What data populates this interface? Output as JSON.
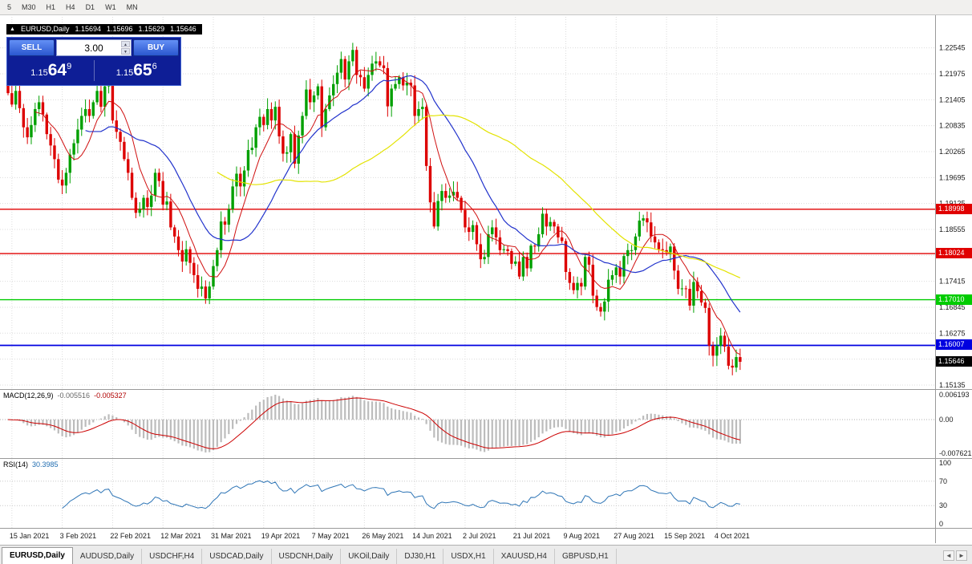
{
  "toolbar": {
    "timeframes": [
      "5",
      "M30",
      "H1",
      "H4",
      "D1",
      "W1",
      "MN"
    ]
  },
  "icons": {
    "panel_toggle": "▲",
    "volume_up": "▲",
    "volume_down": "▼",
    "tabs_left": "◄",
    "tabs_right": "►"
  },
  "ohlc_strip": {
    "symbol": "EURUSD,Daily",
    "open": "1.15694",
    "high": "1.15696",
    "low": "1.15629",
    "close": "1.15646"
  },
  "trade_panel": {
    "sell_label": "SELL",
    "buy_label": "BUY",
    "volume": "3.00",
    "sell_price": {
      "prefix": "1.15",
      "big": "64",
      "sup": "9"
    },
    "buy_price": {
      "prefix": "1.15",
      "big": "65",
      "sup": "6"
    }
  },
  "chart_data": {
    "type": "candlestick",
    "symbol": "EURUSD",
    "timeframe": "Daily",
    "title": "EURUSD,Daily",
    "ylim": [
      1.15046,
      1.2328
    ],
    "y_ticks": [
      {
        "label": "1.22545",
        "price": 1.22545
      },
      {
        "label": "1.21975",
        "price": 1.21975
      },
      {
        "label": "1.21405",
        "price": 1.21405
      },
      {
        "label": "1.20835",
        "price": 1.20835
      },
      {
        "label": "1.20265",
        "price": 1.20265
      },
      {
        "label": "1.19695",
        "price": 1.19695
      },
      {
        "label": "1.19125",
        "price": 1.19125
      },
      {
        "label": "1.18555",
        "price": 1.18555
      },
      {
        "label": "1.17415",
        "price": 1.17415
      },
      {
        "label": "1.16845",
        "price": 1.16845
      },
      {
        "label": "1.16275",
        "price": 1.16275
      },
      {
        "label": "1.15135",
        "price": 1.15135
      }
    ],
    "y_grid_extra": [
      1.17985,
      1.15705
    ],
    "x_labels": [
      "15 Jan 2021",
      "3 Feb 2021",
      "22 Feb 2021",
      "12 Mar 2021",
      "31 Mar 2021",
      "19 Apr 2021",
      "7 May 2021",
      "26 May 2021",
      "14 Jun 2021",
      "2 Jul 2021",
      "21 Jul 2021",
      "9 Aug 2021",
      "27 Aug 2021",
      "15 Sep 2021",
      "4 Oct 2021"
    ],
    "x_label_bars": [
      1,
      14,
      27,
      40,
      53,
      66,
      79,
      92,
      105,
      118,
      131,
      144,
      157,
      170,
      183
    ],
    "closes": [
      1.2155,
      1.213,
      1.216,
      1.2122,
      1.208,
      1.2058,
      1.2085,
      1.212,
      1.2135,
      1.2108,
      1.2065,
      1.204,
      1.201,
      1.1965,
      1.1952,
      1.198,
      1.202,
      1.2045,
      1.2075,
      1.2105,
      1.212,
      1.2105,
      1.2135,
      1.216,
      1.2125,
      1.217,
      1.2176,
      1.2095,
      1.207,
      1.2048,
      1.201,
      1.198,
      1.1925,
      1.1892,
      1.19,
      1.1925,
      1.1905,
      1.193,
      1.198,
      1.1962,
      1.191,
      1.1917,
      1.186,
      1.184,
      1.181,
      1.1785,
      1.1812,
      1.1782,
      1.1755,
      1.1725,
      1.173,
      1.1704,
      1.173,
      1.1775,
      1.181,
      1.1873,
      1.1866,
      1.19,
      1.195,
      1.1978,
      1.195,
      1.1985,
      1.203,
      1.2035,
      1.208,
      1.2103,
      1.2085,
      1.212,
      1.2095,
      1.2125,
      1.206,
      1.2022,
      1.2025,
      1.2065,
      1.2,
      1.2062,
      1.2105,
      1.2163,
      1.2135,
      1.215,
      1.217,
      1.208,
      1.212,
      1.215,
      1.2175,
      1.22,
      1.223,
      1.2185,
      1.2225,
      1.225,
      1.2195,
      1.219,
      1.2165,
      1.2195,
      1.222,
      1.2225,
      1.2216,
      1.221,
      1.2126,
      1.2165,
      1.2175,
      1.219,
      1.2172,
      1.2178,
      1.2172,
      1.2105,
      1.212,
      1.2125,
      1.1995,
      1.1915,
      1.1862,
      1.1918,
      1.194,
      1.1925,
      1.193,
      1.1938,
      1.1925,
      1.1898,
      1.186,
      1.185,
      1.1865,
      1.1823,
      1.179,
      1.1795,
      1.1845,
      1.186,
      1.1838,
      1.181,
      1.1812,
      1.1808,
      1.178,
      1.1785,
      1.1752,
      1.1795,
      1.177,
      1.182,
      1.1818,
      1.1845,
      1.189,
      1.1862,
      1.1872,
      1.1862,
      1.1838,
      1.183,
      1.1762,
      1.1738,
      1.1722,
      1.1738,
      1.173,
      1.1795,
      1.1778,
      1.171,
      1.1685,
      1.1675,
      1.1697,
      1.1745,
      1.1755,
      1.1772,
      1.1752,
      1.1797,
      1.181,
      1.181,
      1.184,
      1.1875,
      1.188,
      1.1871,
      1.184,
      1.1827,
      1.1812,
      1.181,
      1.1805,
      1.1818,
      1.1765,
      1.1725,
      1.1726,
      1.1725,
      1.1688,
      1.174,
      1.172,
      1.1695,
      1.1683,
      1.16,
      1.1578,
      1.16,
      1.1622,
      1.1598,
      1.1556,
      1.1552,
      1.1575,
      1.15646
    ],
    "up_color": "#00a000",
    "down_color": "#dd0000",
    "moving_averages": [
      {
        "period": 8,
        "color": "#d01010",
        "width": 1
      },
      {
        "period": 21,
        "color": "#2233cc",
        "width": 1.2
      },
      {
        "period": 55,
        "color": "#e3e300",
        "width": 1.2
      }
    ],
    "hlines": [
      {
        "price": 1.18998,
        "label": "1.18998",
        "color": "#e00000",
        "width": 1.4
      },
      {
        "price": 1.18024,
        "label": "1.18024",
        "color": "#e00000",
        "width": 1.4
      },
      {
        "price": 1.1701,
        "label": "1.17010",
        "color": "#00cc00",
        "width": 1.4
      },
      {
        "price": 1.16007,
        "label": "1.16007",
        "color": "#0000e0",
        "width": 1.8
      }
    ],
    "current_price": {
      "price": 1.15646,
      "label": "1.15646",
      "color": "#000000"
    }
  },
  "macd": {
    "label": "MACD(12,26,9)",
    "value_main": "-0.005516",
    "value_signal": "-0.005327",
    "fast": 12,
    "slow": 26,
    "signal_period": 9,
    "axis": [
      "0.006193",
      "0.00",
      "-0.007621"
    ],
    "hist_color": "#bcbcbc",
    "signal_color": "#cc0000"
  },
  "rsi": {
    "label": "RSI(14)",
    "value": "30.3985",
    "period": 14,
    "levels": [
      70,
      30
    ],
    "axis": [
      "100",
      "70",
      "30",
      "0"
    ],
    "line_color": "#2e75b6"
  },
  "tabs": {
    "items": [
      {
        "label": "EURUSD,Daily",
        "active": true
      },
      {
        "label": "AUDUSD,Daily",
        "active": false
      },
      {
        "label": "USDCHF,H4",
        "active": false
      },
      {
        "label": "USDCAD,Daily",
        "active": false
      },
      {
        "label": "USDCNH,Daily",
        "active": false
      },
      {
        "label": "UKOil,Daily",
        "active": false
      },
      {
        "label": "DJ30,H1",
        "active": false
      },
      {
        "label": "USDX,H1",
        "active": false
      },
      {
        "label": "XAUUSD,H4",
        "active": false
      },
      {
        "label": "GBPUSD,H1",
        "active": false
      }
    ]
  }
}
